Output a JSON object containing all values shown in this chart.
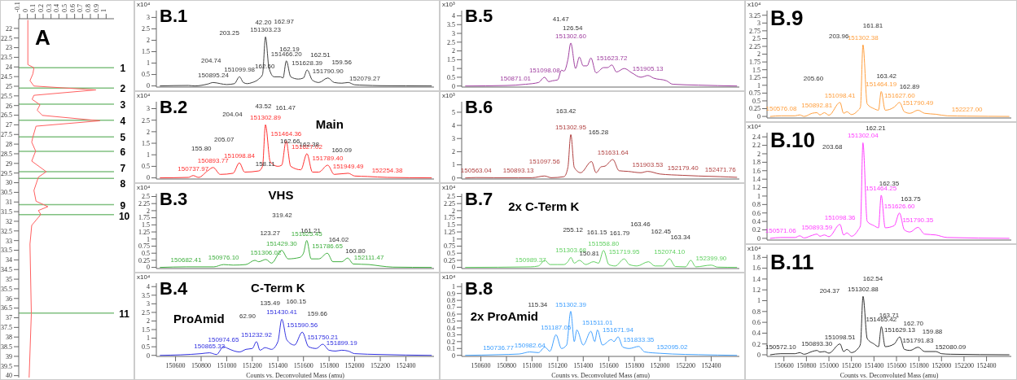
{
  "chart_data": [
    {
      "type": "line",
      "title": "A",
      "series": [
        {
          "color": "#ff6060",
          "x": [
            0.006,
            0.006,
            0.083,
            0.07,
            0.033,
            0.083,
            0.87,
            0.083,
            0.06,
            0.16,
            0.125,
            0.19,
            0.92,
            0.11,
            0.07,
            0.055,
            0.105,
            0.055,
            0.24,
            0.14,
            0.083,
            0.11,
            0.26,
            0.14,
            0.17,
            0.055,
            0.033,
            0.05,
            0.022
          ],
          "values": [
            21.58,
            23.88,
            24.04,
            24.36,
            24.71,
            24.99,
            25.19,
            25.47,
            25.68,
            25.96,
            26.24,
            26.51,
            26.79,
            27.07,
            27.63,
            27.9,
            28.36,
            28.88,
            29.43,
            29.71,
            30.4,
            30.96,
            31.24,
            31.44,
            31.65,
            32.21,
            33.18,
            36.79,
            40.1
          ]
        }
      ],
      "xlim": [
        -0.11,
        1.1
      ],
      "xticks": [
        -0.1,
        0,
        0.1,
        0.2,
        0.3,
        0.4,
        0.5,
        0.6,
        0.7,
        0.8,
        0.9,
        1
      ],
      "ylim": [
        40.1,
        21.5
      ],
      "yticks": [
        22,
        22.5,
        23,
        23.5,
        24,
        24.5,
        25,
        25.5,
        26,
        26.5,
        27,
        27.5,
        28,
        28.5,
        29,
        29.5,
        30,
        30.5,
        31,
        31.5,
        32,
        32.5,
        33,
        33.5,
        34,
        34.5,
        35,
        35.5,
        36,
        36.5,
        37,
        37.5,
        38,
        38.5,
        39,
        39.5,
        40
      ],
      "ref_lines": [
        {
          "axis": "y",
          "value": 24.04,
          "color": "#80c080"
        },
        {
          "axis": "y",
          "value": 25.1,
          "color": "#80c080"
        },
        {
          "axis": "y",
          "value": 25.93,
          "color": "#80c080"
        },
        {
          "axis": "y",
          "value": 26.76,
          "color": "#80c080"
        },
        {
          "axis": "y",
          "value": 27.63,
          "color": "#80c080"
        },
        {
          "axis": "y",
          "value": 28.37,
          "color": "#80c080"
        },
        {
          "axis": "y",
          "value": 29.43,
          "color": "#80c080"
        },
        {
          "axis": "y",
          "value": 29.78,
          "color": "#80c080"
        },
        {
          "axis": "y",
          "value": 31.14,
          "color": "#80c080"
        },
        {
          "axis": "y",
          "value": 31.65,
          "color": "#80c080"
        },
        {
          "axis": "y",
          "value": 36.76,
          "color": "#80c080"
        }
      ],
      "annotations": [
        "1",
        "2",
        "3",
        "4",
        "5",
        "6",
        "7",
        "8",
        "9",
        "10",
        "11"
      ]
    },
    {
      "type": "line",
      "title": "B.1",
      "ylabel": "x10⁴",
      "tick_labels": "y",
      "xlim": [
        150450,
        152620
      ],
      "xticks": [
        150600,
        150800,
        151000,
        151200,
        151400,
        151600,
        151800,
        152000,
        152200,
        152400
      ],
      "ylim": [
        -0.05,
        3.3
      ],
      "yticks": [
        0,
        0.5,
        1,
        1.5,
        2,
        2.5,
        3
      ],
      "x": [
        150480,
        150700,
        150750,
        150850,
        150895.24,
        150950,
        151000,
        151060,
        151099.98,
        151130,
        151160,
        151200,
        151250,
        151280,
        151303.23,
        151330,
        151370,
        151420,
        151440,
        151466.2,
        151500,
        151560,
        151600,
        151628.39,
        151670,
        151720,
        151790.9,
        151840,
        151900,
        151950,
        152000,
        152079.27,
        152200,
        152600
      ],
      "series": [
        {
          "color": "#404040",
          "values": [
            0,
            0.02,
            0,
            0.08,
            0.15,
            0.1,
            0.06,
            0.1,
            0.4,
            0.15,
            0.1,
            0.15,
            0.3,
            0.5,
            2.15,
            0.8,
            0.4,
            0.4,
            0.35,
            1.1,
            0.4,
            0.3,
            0.35,
            0.7,
            0.25,
            0.15,
            0.35,
            0.15,
            0.12,
            0.15,
            0.05,
            0.03,
            0.01,
            0
          ]
        }
      ],
      "annotations": [
        "204.74",
        "203.25",
        "42.20",
        "162.97",
        "162.60",
        "162.19",
        "162.51",
        "159.56",
        {
          "text": "150895.24",
          "x": 150895.24,
          "y": 0.15
        },
        {
          "text": "151099.98",
          "x": 151099.98,
          "y": 0.4
        },
        {
          "text": "151303.23",
          "x": 151303.23,
          "y": 2.15
        },
        {
          "text": "151466.20",
          "x": 151466.2,
          "y": 1.1
        },
        {
          "text": "151628.39",
          "x": 151628.39,
          "y": 0.7
        },
        {
          "text": "151790.90",
          "x": 151790.9,
          "y": 0.35
        },
        {
          "text": "152079.27",
          "x": 152079.27,
          "y": 0.03
        }
      ]
    },
    {
      "type": "line",
      "title": "B.2",
      "ylabel": "x10⁴",
      "tick_labels": "y",
      "xlim": [
        150450,
        152620
      ],
      "xticks": [
        150600,
        150800,
        151000,
        151200,
        151400,
        151600,
        151800,
        152000,
        152200,
        152400
      ],
      "ylim": [
        -0.05,
        3.3
      ],
      "yticks": [
        0,
        0.5,
        1,
        1.5,
        2,
        2.5,
        3
      ],
      "x": [
        150480,
        150700,
        150737.97,
        150780,
        150850,
        150893.77,
        150950,
        151050,
        151098.84,
        151140,
        151250,
        151280,
        151302.89,
        151340,
        151400,
        151430,
        151464.36,
        151500,
        151580,
        151627.02,
        151670,
        151720,
        151789.4,
        151840,
        151949.49,
        152000,
        152100,
        152254.38,
        152600
      ],
      "series": [
        {
          "color": "#ff3030",
          "values": [
            0,
            0.02,
            0.1,
            0.02,
            0.3,
            0.45,
            0.15,
            0.2,
            0.65,
            0.25,
            0.3,
            0.5,
            2.3,
            0.7,
            0.5,
            0.55,
            1.6,
            0.5,
            0.35,
            1.05,
            0.25,
            0.25,
            0.55,
            0.15,
            0.2,
            0.08,
            0.06,
            0.02,
            0
          ]
        }
      ],
      "annotations": [
        "Main",
        "155.80",
        "205.07",
        "204.04",
        "43.52",
        "161.47",
        "162.66",
        "162.38",
        "160.09",
        "158.11",
        {
          "text": "150737.97",
          "x": 150737.97,
          "y": 0.1
        },
        {
          "text": "150893.77",
          "x": 150893.77,
          "y": 0.45
        },
        {
          "text": "151098.84",
          "x": 151098.84,
          "y": 0.65
        },
        {
          "text": "151302.89",
          "x": 151302.89,
          "y": 2.3
        },
        {
          "text": "151464.36",
          "x": 151464.36,
          "y": 1.6
        },
        {
          "text": "151627.02",
          "x": 151627.02,
          "y": 1.05
        },
        {
          "text": "151789.40",
          "x": 151789.4,
          "y": 0.55
        },
        {
          "text": "151949.49",
          "x": 151949.49,
          "y": 0.2
        },
        {
          "text": "152254.38",
          "x": 152254.38,
          "y": 0.02
        }
      ]
    },
    {
      "type": "line",
      "title": "B.3",
      "ylabel": "x10⁴",
      "tick_labels": "y",
      "xlim": [
        150450,
        152620
      ],
      "xticks": [
        150600,
        150800,
        151000,
        151200,
        151400,
        151600,
        151800,
        152000,
        152200,
        152400
      ],
      "ylim": [
        -0.04,
        2.6
      ],
      "yticks": [
        0,
        0.25,
        0.5,
        0.75,
        1,
        1.25,
        1.5,
        1.75,
        2,
        2.25,
        2.5
      ],
      "x": [
        150480,
        150682.41,
        150900,
        150976.1,
        151050,
        151150,
        151220,
        151250,
        151306.02,
        151350,
        151429.3,
        151480,
        151570,
        151600,
        151625.45,
        151660,
        151720,
        151786.65,
        151830,
        151900,
        151945,
        151990,
        152111.47,
        152200,
        152300,
        152600
      ],
      "series": [
        {
          "color": "#40b040",
          "values": [
            0,
            0.02,
            0.02,
            0.1,
            0.08,
            0.1,
            0.25,
            0.2,
            0.28,
            0.15,
            0.6,
            0.3,
            0.35,
            0.5,
            0.95,
            0.3,
            0.3,
            0.5,
            0.2,
            0.2,
            0.33,
            0.12,
            0.1,
            0.05,
            0.01,
            0
          ]
        }
      ],
      "annotations": [
        "VHS",
        "319.42",
        "123.27",
        "161.21",
        "164.02",
        "160.80",
        {
          "text": "150682.41",
          "x": 150682.41,
          "y": 0.02
        },
        {
          "text": "150976.10",
          "x": 150976.1,
          "y": 0.1
        },
        {
          "text": "151306.02",
          "x": 151306.02,
          "y": 0.28
        },
        {
          "text": "151429.30",
          "x": 151429.3,
          "y": 0.6
        },
        {
          "text": "151625.45",
          "x": 151625.45,
          "y": 0.95
        },
        {
          "text": "151786.65",
          "x": 151786.65,
          "y": 0.5
        },
        {
          "text": "152111.47",
          "x": 152111.47,
          "y": 0.1
        }
      ]
    },
    {
      "type": "line",
      "title": "B.4",
      "ylabel": "x10⁴",
      "xlabel": "Counts vs. Deconvoluted Mass (amu)",
      "xlim": [
        150450,
        152620
      ],
      "xticks": [
        150600,
        150800,
        151000,
        151200,
        151400,
        151600,
        151800,
        152000,
        152200,
        152400
      ],
      "ylim": [
        -0.06,
        4.2
      ],
      "yticks": [
        0,
        0.5,
        1,
        1.5,
        2,
        2.5,
        3,
        3.5,
        4
      ],
      "x": [
        150480,
        150800,
        150865.33,
        150920,
        150974.65,
        151010,
        151060,
        151100,
        151150,
        151200,
        151232.92,
        151260,
        151300,
        151350,
        151400,
        151430.41,
        151470,
        151530,
        151590.56,
        151640,
        151700,
        151750.21,
        151800,
        151850,
        151899.19,
        151950,
        152000,
        152200,
        152600
      ],
      "series": [
        {
          "color": "#3030e0",
          "values": [
            0,
            0.1,
            0.15,
            0.05,
            0.5,
            0.4,
            0.25,
            0.2,
            0.35,
            0.4,
            0.8,
            0.3,
            0.45,
            0.35,
            0.8,
            2.1,
            0.9,
            0.6,
            1.35,
            0.5,
            0.4,
            0.65,
            0.3,
            0.25,
            0.3,
            0.25,
            0.1,
            0.05,
            0
          ]
        }
      ],
      "annotations": [
        "C-Term K",
        "ProAmid",
        "62.90",
        "135.49",
        "160.15",
        "159.66",
        {
          "text": "150865.33",
          "x": 150865.33,
          "y": 0.15
        },
        {
          "text": "150974.65",
          "x": 150974.65,
          "y": 0.5
        },
        {
          "text": "151232.92",
          "x": 151232.92,
          "y": 0.8
        },
        {
          "text": "151430.41",
          "x": 151430.41,
          "y": 2.1
        },
        {
          "text": "151590.56",
          "x": 151590.56,
          "y": 1.35
        },
        {
          "text": "151750.21",
          "x": 151750.21,
          "y": 0.65
        },
        {
          "text": "151899.19",
          "x": 151899.19,
          "y": 0.3
        }
      ]
    },
    {
      "type": "line",
      "title": "B.5",
      "ylabel": "x10³",
      "tick_labels": "y",
      "xlim": [
        150450,
        152620
      ],
      "xticks": [
        150600,
        150800,
        151000,
        151200,
        151400,
        151600,
        151800,
        152000,
        152200,
        152400
      ],
      "ylim": [
        -0.06,
        4.3
      ],
      "yticks": [
        0,
        0.5,
        1,
        1.5,
        2,
        2.5,
        3,
        3.5,
        4
      ],
      "x": [
        150480,
        150800,
        150871.01,
        150950,
        151050,
        151098.08,
        151130,
        151160,
        151200,
        151230,
        151250,
        151280,
        151302.6,
        151340,
        151370,
        151400,
        151430,
        151460,
        151500,
        151560,
        151590,
        151623.72,
        151660,
        151720,
        151780,
        151850,
        151905.13,
        151950,
        152050,
        152100,
        152300,
        152600
      ],
      "series": [
        {
          "color": "#a040a0",
          "values": [
            0,
            0.03,
            0.05,
            0.1,
            0.2,
            0.5,
            0.25,
            0.3,
            0.35,
            0.9,
            0.85,
            1.5,
            2.45,
            1.0,
            1.65,
            1.15,
            1.15,
            1.6,
            0.75,
            1.05,
            1.05,
            1.2,
            0.8,
            1.0,
            0.75,
            0.5,
            0.6,
            0.45,
            0.3,
            0.1,
            0.05,
            0
          ]
        }
      ],
      "annotations": [
        "41.47",
        "126.54",
        {
          "text": "150871.01",
          "x": 150871.01,
          "y": 0.05
        },
        {
          "text": "151098.08",
          "x": 151098.08,
          "y": 0.5
        },
        {
          "text": "151302.60",
          "x": 151302.6,
          "y": 2.45
        },
        {
          "text": "151623.72",
          "x": 151623.72,
          "y": 1.2
        },
        {
          "text": "151905.13",
          "x": 151905.13,
          "y": 0.6
        }
      ]
    },
    {
      "type": "line",
      "title": "B.6",
      "ylabel": "x10³",
      "tick_labels": "y",
      "xlim": [
        150450,
        152620
      ],
      "xticks": [
        150600,
        150800,
        151000,
        151200,
        151400,
        151600,
        151800,
        152000,
        152200,
        152400
      ],
      "ylim": [
        -0.08,
        5.8
      ],
      "yticks": [
        0,
        1,
        2,
        3,
        4,
        5
      ],
      "x": [
        150480,
        150563.04,
        150700,
        150893.13,
        151000,
        151097.56,
        151150,
        151250,
        151280,
        151302.95,
        151330,
        151380,
        151465,
        151500,
        151540,
        151570,
        151631.64,
        151680,
        151750,
        151850,
        151903.53,
        152000,
        152179.4,
        152300,
        152471.76,
        152600
      ],
      "series": [
        {
          "color": "#b04040",
          "values": [
            0,
            0.03,
            0.02,
            0.02,
            0.02,
            0.15,
            0.02,
            0.1,
            0.8,
            3.3,
            0.8,
            0.4,
            1.25,
            0.4,
            0.85,
            0.9,
            1.4,
            0.55,
            0.5,
            0.4,
            0.5,
            0.3,
            0.2,
            0.15,
            0.1,
            0.05
          ]
        }
      ],
      "annotations": [
        "163.42",
        "165.28",
        {
          "text": "150563.04",
          "x": 150563.04,
          "y": 0.03
        },
        {
          "text": "150893.13",
          "x": 150893.13,
          "y": 0.02
        },
        {
          "text": "151097.56",
          "x": 151097.56,
          "y": 0.15
        },
        {
          "text": "151302.95",
          "x": 151302.95,
          "y": 3.3
        },
        {
          "text": "151631.64",
          "x": 151631.64,
          "y": 1.4
        },
        {
          "text": "151903.53",
          "x": 151903.53,
          "y": 0.5
        },
        {
          "text": "152179.40",
          "x": 152179.4,
          "y": 0.2
        },
        {
          "text": "152471.76",
          "x": 152471.76,
          "y": 0.1
        }
      ]
    },
    {
      "type": "line",
      "title": "B.7",
      "ylabel": "x10⁴",
      "tick_labels": "y",
      "xlim": [
        150450,
        152620
      ],
      "xticks": [
        150600,
        150800,
        151000,
        151200,
        151400,
        151600,
        151800,
        152000,
        152200,
        152400
      ],
      "ylim": [
        -0.04,
        2.6
      ],
      "yticks": [
        0,
        0.25,
        0.5,
        0.75,
        1,
        1.25,
        1.5,
        1.75,
        2,
        2.25,
        2.5
      ],
      "x": [
        150480,
        150989.37,
        151050,
        151100,
        151140,
        151200,
        151250,
        151280,
        151303.68,
        151330,
        151370,
        151420,
        151480,
        151520,
        151558.8,
        151600,
        151650,
        151719.95,
        151760,
        151820,
        151910,
        151960,
        152020,
        152074.1,
        152120,
        152200,
        152240,
        152280,
        152399.9,
        152450,
        152600
      ],
      "series": [
        {
          "color": "#60d060",
          "values": [
            0,
            0.02,
            0.05,
            0.25,
            0.1,
            0.1,
            0.1,
            0.2,
            0.35,
            0.15,
            0.25,
            0.1,
            0.2,
            0.15,
            0.6,
            0.1,
            0.05,
            0.3,
            0.1,
            0.05,
            0.2,
            0.05,
            0.05,
            0.3,
            0.03,
            0.02,
            0.25,
            0.02,
            0.08,
            0.01,
            0
          ]
        }
      ],
      "annotations": [
        "2x C-Term K",
        "255.12",
        "161.15",
        "161.79",
        "150.81",
        "163.46",
        "162.45",
        "163.34",
        {
          "text": "150989.37",
          "x": 150989.37,
          "y": 0.02
        },
        {
          "text": "151303.68",
          "x": 151303.68,
          "y": 0.35
        },
        {
          "text": "151558.80",
          "x": 151558.8,
          "y": 0.6
        },
        {
          "text": "151719.95",
          "x": 151719.95,
          "y": 0.3
        },
        {
          "text": "152074.10",
          "x": 152074.1,
          "y": 0.3
        },
        {
          "text": "152399.90",
          "x": 152399.9,
          "y": 0.08
        }
      ]
    },
    {
      "type": "line",
      "title": "B.8",
      "ylabel": "x10⁴",
      "xlabel": "Counts vs. Deconvoluted Mass (amu)",
      "xlim": [
        150450,
        152620
      ],
      "xticks": [
        150600,
        150800,
        151000,
        151200,
        151400,
        151600,
        151800,
        152000,
        152200,
        152400
      ],
      "ylim": [
        -0.015,
        1.05
      ],
      "yticks": [
        0,
        0.1,
        0.2,
        0.3,
        0.4,
        0.5,
        0.6,
        0.7,
        0.8,
        0.9,
        1
      ],
      "x": [
        150480,
        150736.77,
        150900,
        150982.64,
        151050,
        151100,
        151140,
        151187.05,
        151230,
        151270,
        151302.39,
        151330,
        151350,
        151400,
        151460,
        151490,
        151511.01,
        151550,
        151620,
        151640,
        151671.94,
        151710,
        151760,
        151833.35,
        151880,
        152000,
        152095.02,
        152300,
        152600
      ],
      "series": [
        {
          "color": "#40a0ff",
          "values": [
            0,
            0.01,
            0.02,
            0.05,
            0.04,
            0.12,
            0.06,
            0.3,
            0.1,
            0.15,
            0.64,
            0.2,
            0.37,
            0.15,
            0.35,
            0.2,
            0.37,
            0.15,
            0.23,
            0.2,
            0.27,
            0.12,
            0.1,
            0.13,
            0.05,
            0.03,
            0.02,
            0.01,
            0
          ]
        }
      ],
      "annotations": [
        "2x ProAmid",
        "115.34",
        {
          "text": "150736.77",
          "x": 150736.77,
          "y": 0.01
        },
        {
          "text": "150982.64",
          "x": 150982.64,
          "y": 0.05
        },
        {
          "text": "151187.05",
          "x": 151187.05,
          "y": 0.3
        },
        {
          "text": "151302.39",
          "x": 151302.39,
          "y": 0.64
        },
        {
          "text": "151511.01",
          "x": 151511.01,
          "y": 0.37
        },
        {
          "text": "151671.94",
          "x": 151671.94,
          "y": 0.27
        },
        {
          "text": "151833.35",
          "x": 151833.35,
          "y": 0.13
        },
        {
          "text": "152095.02",
          "x": 152095.02,
          "y": 0.02
        }
      ]
    },
    {
      "type": "line",
      "title": "B.9",
      "ylabel": "x10⁴",
      "tick_labels": "y",
      "xlim": [
        150450,
        152620
      ],
      "xticks": [
        150600,
        150800,
        151000,
        151200,
        151400,
        151600,
        151800,
        152000,
        152200,
        152400
      ],
      "ylim": [
        -0.05,
        3.4
      ],
      "yticks": [
        0,
        0.25,
        0.5,
        0.75,
        1,
        1.25,
        1.5,
        1.75,
        2,
        2.25,
        2.5,
        2.75,
        3,
        3.25
      ],
      "x": [
        150480,
        150576.08,
        150700,
        150740,
        150780,
        150850,
        150892.81,
        150920,
        150960,
        151000,
        151098.41,
        151130,
        151160,
        151200,
        151260,
        151280,
        151302.38,
        151340,
        151400,
        151440,
        151464.19,
        151500,
        151580,
        151627.6,
        151670,
        151720,
        151790.49,
        151850,
        151950,
        152050,
        152227,
        152600
      ],
      "series": [
        {
          "color": "#ffa040",
          "values": [
            0,
            0.02,
            0.02,
            0.05,
            0,
            0.1,
            0.12,
            0.05,
            0.12,
            0.04,
            0.45,
            0.1,
            0.15,
            0.06,
            0.2,
            0.3,
            2.3,
            0.4,
            0.25,
            0.2,
            0.8,
            0.2,
            0.3,
            0.45,
            0.15,
            0.1,
            0.2,
            0.1,
            0.07,
            0.02,
            0.01,
            0
          ]
        }
      ],
      "annotations": [
        "205.60",
        "203.96",
        "161.81",
        "163.42",
        "162.89",
        {
          "text": "150576.08",
          "x": 150576.08,
          "y": 0.02
        },
        {
          "text": "150892.81",
          "x": 150892.81,
          "y": 0.12
        },
        {
          "text": "151098.41",
          "x": 151098.41,
          "y": 0.45
        },
        {
          "text": "151302.38",
          "x": 151302.38,
          "y": 2.3
        },
        {
          "text": "151464.19",
          "x": 151464.19,
          "y": 0.8
        },
        {
          "text": "151627.60",
          "x": 151627.6,
          "y": 0.45
        },
        {
          "text": "151790.49",
          "x": 151790.49,
          "y": 0.2
        },
        {
          "text": "152227.00",
          "x": 152227,
          "y": 0.01
        }
      ]
    },
    {
      "type": "line",
      "title": "B.10",
      "ylabel": "x10⁴",
      "tick_labels": "y",
      "xlim": [
        150450,
        152620
      ],
      "xticks": [
        150600,
        150800,
        151000,
        151200,
        151400,
        151600,
        151800,
        152000,
        152200,
        152400
      ],
      "ylim": [
        -0.04,
        2.5
      ],
      "yticks": [
        0,
        0.2,
        0.4,
        0.6,
        0.8,
        1,
        1.2,
        1.4,
        1.6,
        1.8,
        2,
        2.2,
        2.4
      ],
      "x": [
        150480,
        150571.06,
        150700,
        150740,
        150780,
        150850,
        150893.59,
        150920,
        150960,
        151000,
        151098.36,
        151130,
        151160,
        151200,
        151260,
        151280,
        151302.04,
        151340,
        151400,
        151440,
        151464.25,
        151500,
        151580,
        151626.6,
        151670,
        151720,
        151790.35,
        151850,
        151950,
        152050,
        152600
      ],
      "series": [
        {
          "color": "#ff40ff",
          "values": [
            0,
            0.02,
            0.02,
            0.06,
            0.01,
            0.07,
            0.1,
            0.05,
            0.08,
            0.04,
            0.33,
            0.08,
            0.13,
            0.05,
            0.2,
            0.3,
            2.26,
            0.4,
            0.3,
            0.25,
            1.02,
            0.25,
            0.3,
            0.6,
            0.2,
            0.15,
            0.26,
            0.1,
            0.08,
            0.02,
            0
          ]
        }
      ],
      "annotations": [
        "203.68",
        "162.21",
        "162.35",
        "163.75",
        {
          "text": "150571.06",
          "x": 150571.06,
          "y": 0.02
        },
        {
          "text": "150893.59",
          "x": 150893.59,
          "y": 0.1
        },
        {
          "text": "151098.36",
          "x": 151098.36,
          "y": 0.33
        },
        {
          "text": "151302.04",
          "x": 151302.04,
          "y": 2.26
        },
        {
          "text": "151464.25",
          "x": 151464.25,
          "y": 1.02
        },
        {
          "text": "151626.60",
          "x": 151626.6,
          "y": 0.6
        },
        {
          "text": "151790.35",
          "x": 151790.35,
          "y": 0.26
        }
      ]
    },
    {
      "type": "line",
      "title": "B.11",
      "ylabel": "x10⁴",
      "xlabel": "Counts vs. Deconvoluted Mass (amu)",
      "xlim": [
        150450,
        152620
      ],
      "xticks": [
        150600,
        150800,
        151000,
        151200,
        151400,
        151600,
        151800,
        152000,
        152200,
        152400
      ],
      "ylim": [
        -0.03,
        1.85
      ],
      "yticks": [
        0,
        0.2,
        0.4,
        0.6,
        0.8,
        1,
        1.2,
        1.4,
        1.6,
        1.8
      ],
      "x": [
        150480,
        150572.1,
        150700,
        150740,
        150780,
        150850,
        150893.3,
        150920,
        150960,
        151000,
        151098.51,
        151130,
        151160,
        151200,
        151260,
        151280,
        151302.88,
        151340,
        151400,
        151440,
        151465.42,
        151500,
        151580,
        151629.13,
        151670,
        151720,
        151791.83,
        151850,
        151950,
        152000,
        152080.09,
        152600
      ],
      "series": [
        {
          "color": "#303030",
          "values": [
            0,
            0.02,
            0.02,
            0.04,
            0.01,
            0.06,
            0.08,
            0.05,
            0.06,
            0.03,
            0.2,
            0.06,
            0.1,
            0.04,
            0.12,
            0.2,
            1.08,
            0.3,
            0.2,
            0.15,
            0.52,
            0.15,
            0.2,
            0.33,
            0.1,
            0.08,
            0.14,
            0.06,
            0.06,
            0.02,
            0.01,
            0
          ]
        }
      ],
      "annotations": [
        "204.37",
        "162.54",
        "163.71",
        "162.70",
        "159.88",
        {
          "text": "150572.10",
          "x": 150572.1,
          "y": 0.02
        },
        {
          "text": "150893.30",
          "x": 150893.3,
          "y": 0.08
        },
        {
          "text": "151098.51",
          "x": 151098.51,
          "y": 0.2
        },
        {
          "text": "151302.88",
          "x": 151302.88,
          "y": 1.08
        },
        {
          "text": "151465.42",
          "x": 151465.42,
          "y": 0.52
        },
        {
          "text": "151629.13",
          "x": 151629.13,
          "y": 0.33
        },
        {
          "text": "151791.83",
          "x": 151791.83,
          "y": 0.14
        },
        {
          "text": "152080.09",
          "x": 152080.09,
          "y": 0.01
        }
      ]
    }
  ]
}
